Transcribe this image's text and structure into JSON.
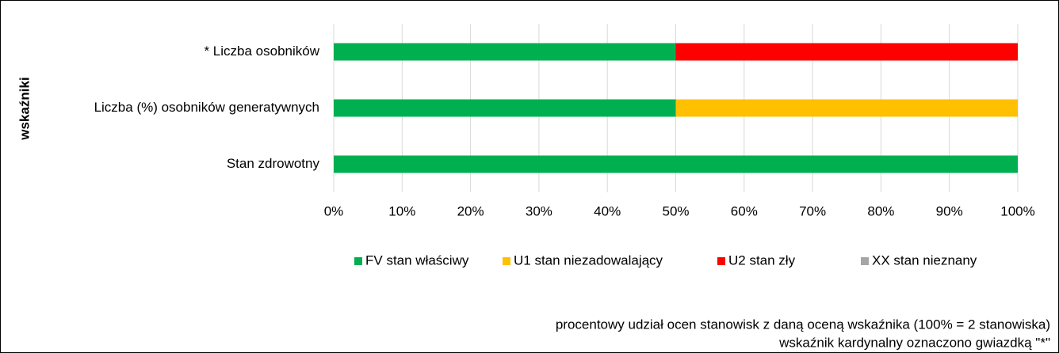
{
  "chart_data": {
    "type": "bar_stacked_horizontal",
    "categories": [
      "* Liczba osobników",
      "Liczba (%) osobników generatywnych",
      "Stan zdrowotny"
    ],
    "series": [
      {
        "name": "FV stan właściwy",
        "color": "#00b050",
        "values": [
          50,
          50,
          100
        ]
      },
      {
        "name": "U1 stan niezadowalający",
        "color": "#ffc000",
        "values": [
          0,
          50,
          0
        ]
      },
      {
        "name": "U2 stan zły",
        "color": "#ff0000",
        "values": [
          50,
          0,
          0
        ]
      },
      {
        "name": "XX stan nieznany",
        "color": "#a6a6a6",
        "values": [
          0,
          0,
          0
        ]
      }
    ],
    "ylabel": "wskaźniki",
    "xlim": [
      0,
      100
    ],
    "xticks": [
      {
        "value": 0,
        "label": "0%"
      },
      {
        "value": 10,
        "label": "10%"
      },
      {
        "value": 20,
        "label": "20%"
      },
      {
        "value": 30,
        "label": "30%"
      },
      {
        "value": 40,
        "label": "40%"
      },
      {
        "value": 50,
        "label": "50%"
      },
      {
        "value": 60,
        "label": "60%"
      },
      {
        "value": 70,
        "label": "70%"
      },
      {
        "value": 80,
        "label": "80%"
      },
      {
        "value": 90,
        "label": "90%"
      },
      {
        "value": 100,
        "label": "100%"
      }
    ],
    "grid": true,
    "legend": "bottom",
    "notes": [
      "procentowy udział ocen stanowisk z daną oceną wskaźnika (100% = 2 stanowiska)",
      "wskaźnik kardynalny oznaczono gwiazdką \"*\""
    ]
  }
}
